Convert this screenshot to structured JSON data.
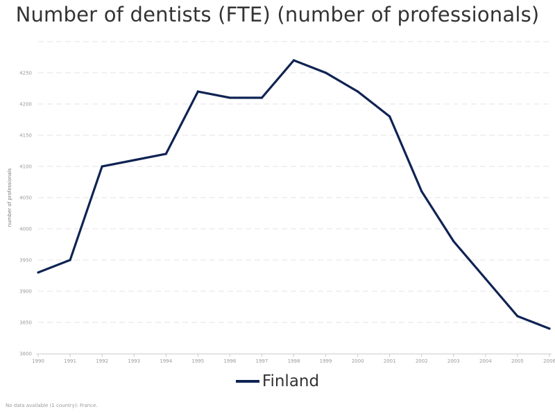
{
  "chart_data": {
    "type": "line",
    "title": "Number of dentists (FTE) (number of professionals)",
    "ylabel": "number of professionals",
    "xlabel": "",
    "ylim": [
      3800,
      4300
    ],
    "y_ticks": [
      3800,
      3850,
      3900,
      3950,
      4000,
      4050,
      4100,
      4150,
      4200,
      4250
    ],
    "x": [
      "1990",
      "1991",
      "1992",
      "1993",
      "1994",
      "1995",
      "1996",
      "1997",
      "1998",
      "1999",
      "2000",
      "2001",
      "2002",
      "2003",
      "2004",
      "2005",
      "2006"
    ],
    "series": [
      {
        "name": "Finland",
        "color": "#0f2353",
        "values": [
          3930,
          3950,
          4100,
          4110,
          4120,
          4220,
          4210,
          4210,
          4270,
          4250,
          4220,
          4180,
          4060,
          3980,
          3920,
          3860,
          3840
        ]
      }
    ],
    "grid": true,
    "legend_position": "bottom-center"
  },
  "footnote": "No data available (1 country): France."
}
